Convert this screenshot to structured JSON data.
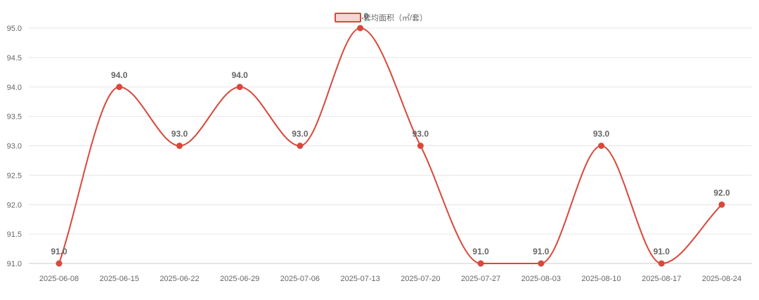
{
  "chart_data": {
    "type": "line",
    "title": "",
    "xlabel": "",
    "ylabel": "",
    "categories": [
      "2025-06-08",
      "2025-06-15",
      "2025-06-22",
      "2025-06-29",
      "2025-07-06",
      "2025-07-13",
      "2025-07-20",
      "2025-07-27",
      "2025-08-03",
      "2025-08-10",
      "2025-08-17",
      "2025-08-24"
    ],
    "series": [
      {
        "name": "套均面积（㎡/套）",
        "values": [
          91.0,
          94.0,
          93.0,
          94.0,
          93.0,
          95.0,
          93.0,
          91.0,
          91.0,
          93.0,
          91.0,
          92.0
        ],
        "color": "#d9483b",
        "smooth": true,
        "show_points": true,
        "data_labels": true
      }
    ],
    "ylim": [
      91.0,
      95.0
    ],
    "y_ticks": [
      91.0,
      91.5,
      92.0,
      92.5,
      93.0,
      93.5,
      94.0,
      94.5,
      95.0
    ],
    "grid": true,
    "legend_position": "top-center"
  }
}
